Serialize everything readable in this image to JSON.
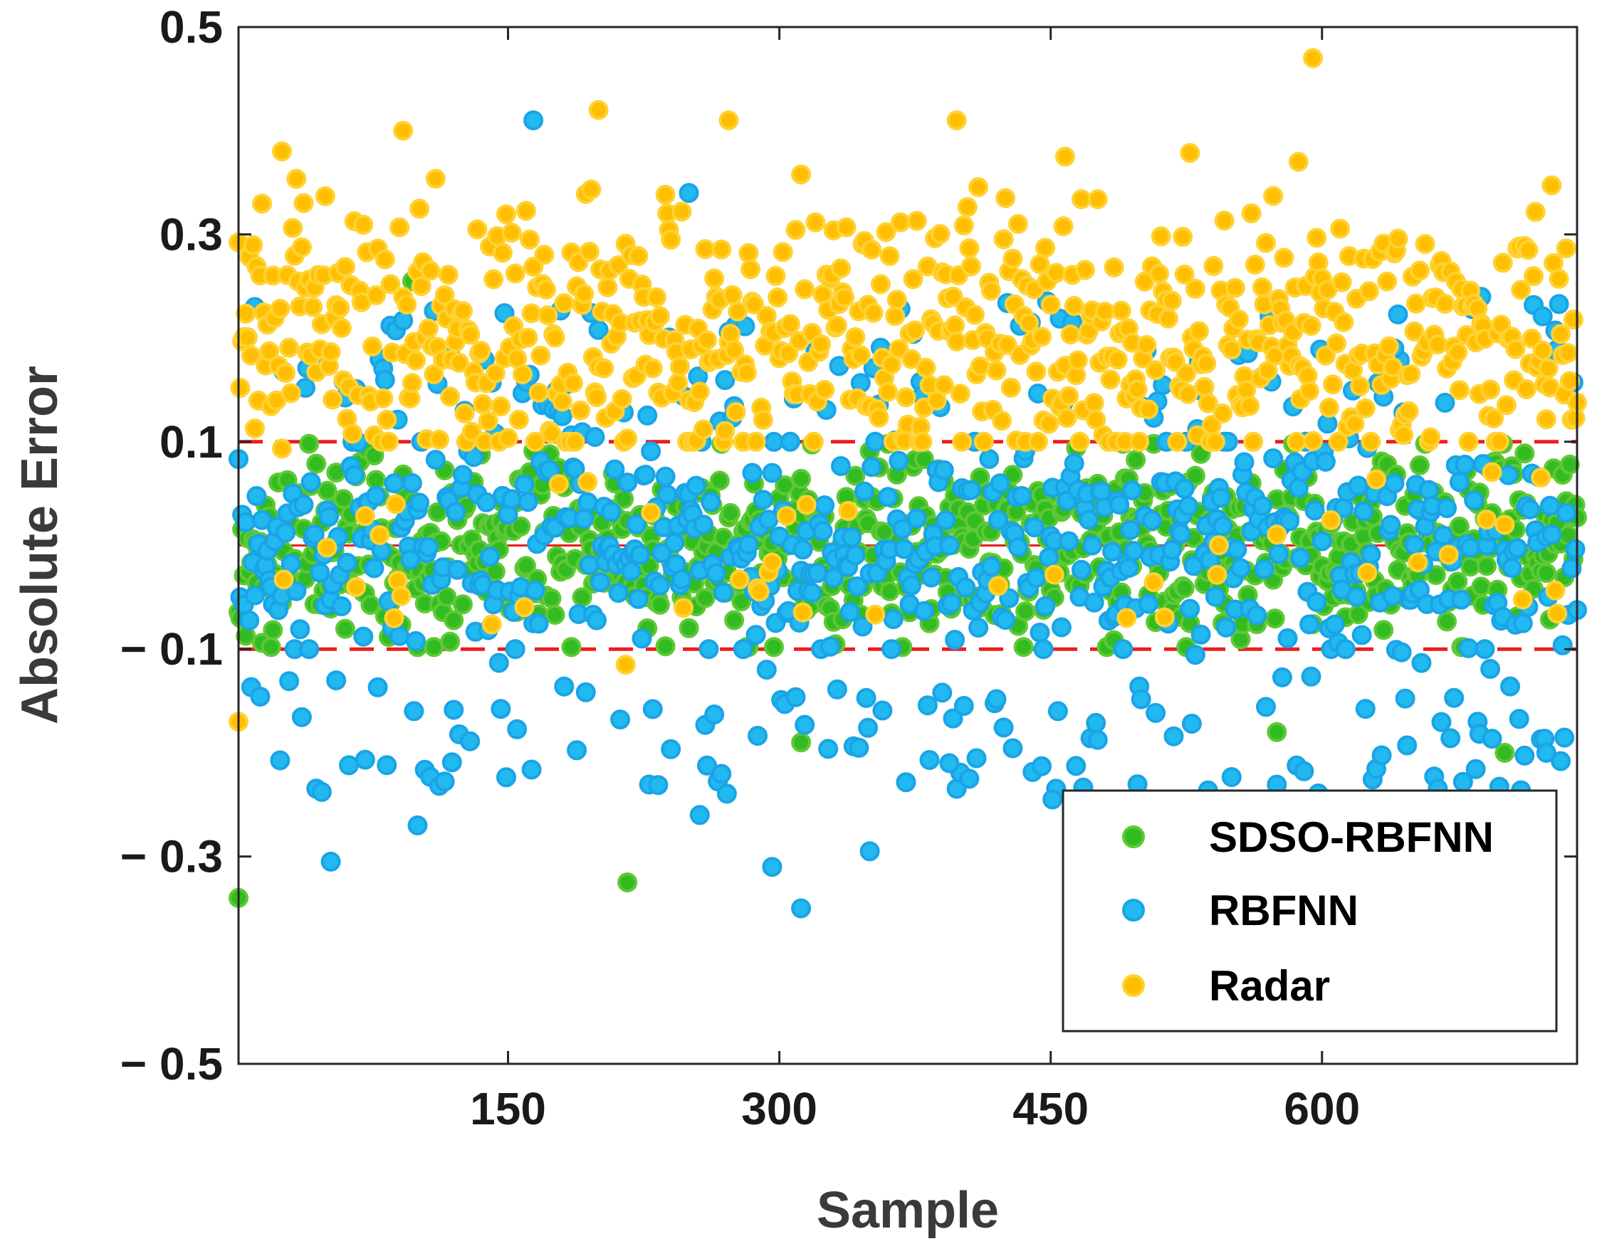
{
  "chart_data": {
    "type": "scatter",
    "title": "",
    "xlabel": "Sample",
    "ylabel": "Absolute Error",
    "xlim": [
      1,
      741
    ],
    "ylim": [
      -0.5,
      0.5
    ],
    "xticks": [
      150,
      300,
      450,
      600
    ],
    "xtick_labels": [
      "150",
      "300",
      "450",
      "600"
    ],
    "yticks": [
      0.5,
      0.3,
      0.1,
      -0.1,
      -0.3,
      -0.5
    ],
    "ytick_labels": [
      "0.5",
      "0.3",
      "0.1",
      "− 0.1",
      "− 0.3",
      "− 0.5"
    ],
    "reference_lines": [
      {
        "y": 0.1,
        "style": "dashed",
        "color": "#ee1c1c"
      },
      {
        "y": 0.0,
        "style": "solid",
        "color": "#ee1c1c"
      },
      {
        "y": -0.1,
        "style": "dashed",
        "color": "#ee1c1c"
      }
    ],
    "legend": {
      "position": "bottom-right",
      "entries": [
        "SDSO-RBFNN",
        "RBFNN",
        "Radar"
      ]
    },
    "series": [
      {
        "name": "SDSO-RBFNN",
        "color": "#33bb22",
        "edge": "#5ec935",
        "mean_abs_error_band": [
          -0.1,
          0.1
        ],
        "outliers": [
          [
            1,
            -0.34
          ],
          [
            97,
            0.255
          ],
          [
            216,
            -0.325
          ],
          [
            312,
            -0.19
          ],
          [
            575,
            -0.18
          ],
          [
            701,
            -0.2
          ]
        ],
        "n_points": 741
      },
      {
        "name": "RBFNN",
        "color": "#22b8f0",
        "edge": "#1aa4e6",
        "mean_abs_error_band": [
          -0.2,
          0.2
        ],
        "outliers": [
          [
            164,
            0.41
          ],
          [
            250,
            0.34
          ],
          [
            256,
            -0.26
          ],
          [
            10,
            0.23
          ],
          [
            100,
            -0.27
          ],
          [
            52,
            -0.305
          ],
          [
            296,
            -0.31
          ],
          [
            312,
            -0.35
          ],
          [
            350,
            -0.295
          ],
          [
            451,
            -0.245
          ],
          [
            640,
            0.19
          ],
          [
            724,
            -0.2
          ],
          [
            394,
            -0.21
          ]
        ],
        "n_points": 741
      },
      {
        "name": "Radar",
        "color": "#ffbf00",
        "edge": "#ffd233",
        "mean_abs_error_band": [
          0.1,
          0.3
        ],
        "outliers": [
          [
            1,
            -0.17
          ],
          [
            595,
            0.47
          ],
          [
            200,
            0.42
          ],
          [
            272,
            0.41
          ],
          [
            398,
            0.41
          ],
          [
            92,
            0.4
          ],
          [
            25,
            0.38
          ],
          [
            587,
            0.37
          ],
          [
            458,
            0.375
          ],
          [
            215,
            -0.115
          ],
          [
            492,
            -0.07
          ]
        ],
        "n_points": 741
      }
    ]
  }
}
